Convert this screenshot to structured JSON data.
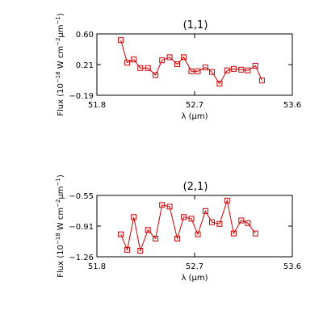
{
  "chart_data": [
    {
      "type": "line",
      "title": "(1,1)",
      "xlabel": "λ (μm)",
      "ylabel": "Flux (10^-18 W cm^-2 μm^-1)",
      "xlim": [
        51.8,
        53.6
      ],
      "ylim": [
        -0.19,
        0.6
      ],
      "xticks": [
        "51.8",
        "52.7",
        "53.6"
      ],
      "yticks": [
        "0.60",
        "0.21",
        "−0.19"
      ],
      "grid": false,
      "color": "#cc0000",
      "marker": "square",
      "series": [
        {
          "x": [
            52.02,
            52.08,
            52.14,
            52.2,
            52.27,
            52.34,
            52.4,
            52.47,
            52.54,
            52.6,
            52.67,
            52.73,
            52.8,
            52.86,
            52.93,
            53.0,
            53.06,
            53.13,
            53.19,
            53.26,
            53.32
          ],
          "y": [
            0.52,
            0.23,
            0.27,
            0.16,
            0.16,
            0.07,
            0.26,
            0.3,
            0.21,
            0.3,
            0.12,
            0.12,
            0.17,
            0.11,
            -0.04,
            0.13,
            0.15,
            0.14,
            0.13,
            0.19,
            0.0
          ]
        }
      ]
    },
    {
      "type": "line",
      "title": "(2,1)",
      "xlabel": "λ (μm)",
      "ylabel": "Flux (10^-18 W cm^-2 μm^-1)",
      "xlim": [
        51.8,
        53.6
      ],
      "ylim": [
        -1.26,
        -0.55
      ],
      "xticks": [
        "51.8",
        "52.7",
        "53.6"
      ],
      "yticks": [
        "−0.55",
        "−0.91",
        "−1.26"
      ],
      "grid": false,
      "color": "#cc0000",
      "marker": "square",
      "series": [
        {
          "x": [
            52.02,
            52.08,
            52.14,
            52.2,
            52.27,
            52.34,
            52.4,
            52.47,
            52.54,
            52.6,
            52.67,
            52.73,
            52.8,
            52.86,
            52.93,
            53.0,
            53.06,
            53.13,
            53.19,
            53.26
          ],
          "y": [
            -1.0,
            -1.18,
            -0.8,
            -1.19,
            -0.95,
            -1.05,
            -0.66,
            -0.68,
            -1.05,
            -0.8,
            -0.82,
            -1.0,
            -0.73,
            -0.86,
            -0.88,
            -0.61,
            -0.99,
            -0.84,
            -0.87,
            -0.99
          ]
        }
      ]
    }
  ]
}
